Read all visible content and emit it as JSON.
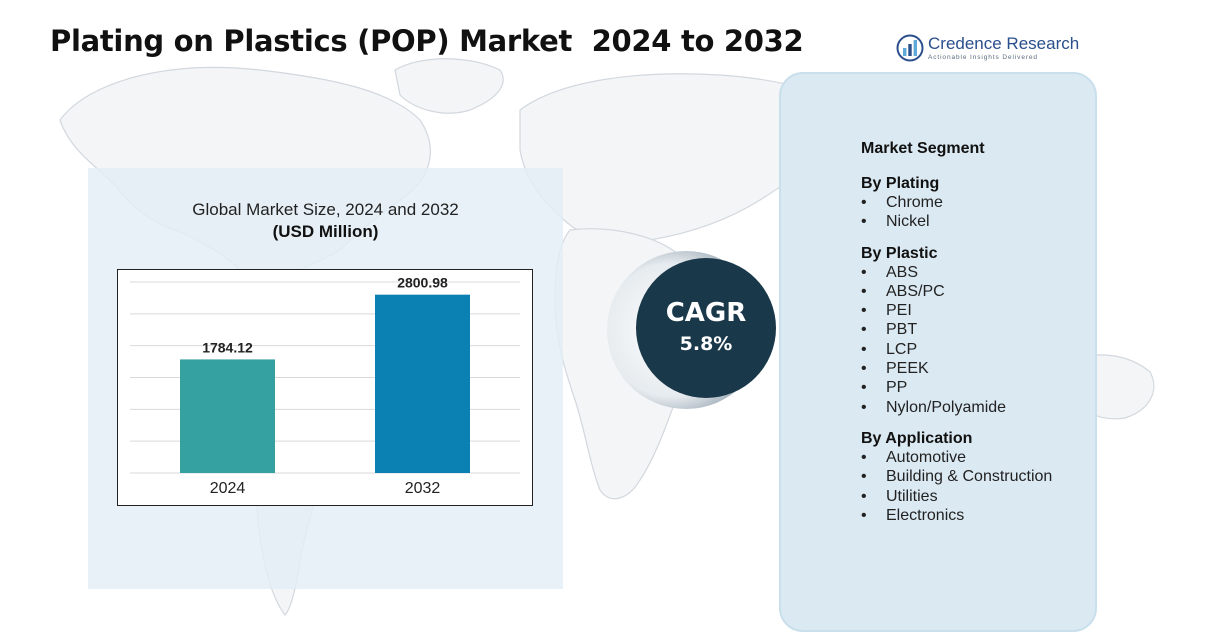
{
  "header": {
    "title": "Plating on Plastics (POP) Market  2024 to 2032"
  },
  "logo": {
    "name": "Credence Research",
    "tagline": "Actionable Insights Delivered",
    "colors": [
      "#2a4f8c",
      "#5fa9d9"
    ]
  },
  "chart_data": {
    "type": "bar",
    "title": "Global Market Size, 2024 and 2032",
    "subtitle": "(USD Million)",
    "categories": [
      "2024",
      "2032"
    ],
    "values": [
      1784.12,
      2800.98
    ],
    "value_labels": [
      "1784.12",
      "2800.98"
    ],
    "ylim": [
      0,
      3000
    ],
    "grid": true,
    "bar_colors": [
      "#35a1a0",
      "#0b80b3"
    ],
    "legend": "none"
  },
  "cagr": {
    "label": "CAGR",
    "value": "5.8%",
    "color": "#19384a"
  },
  "segments": {
    "heading": "Market Segment",
    "groups": [
      {
        "title": "By Plating",
        "items": [
          "Chrome",
          "Nickel"
        ]
      },
      {
        "title": "By Plastic",
        "items": [
          "ABS",
          "ABS/PC",
          "PEI",
          "PBT",
          "LCP",
          "PEEK",
          "PP",
          "Nylon/Polyamide"
        ]
      },
      {
        "title": "By Application",
        "items": [
          "Automotive",
          "Building & Construction",
          "Utilities",
          "Electronics"
        ]
      }
    ],
    "bullet": "•"
  }
}
